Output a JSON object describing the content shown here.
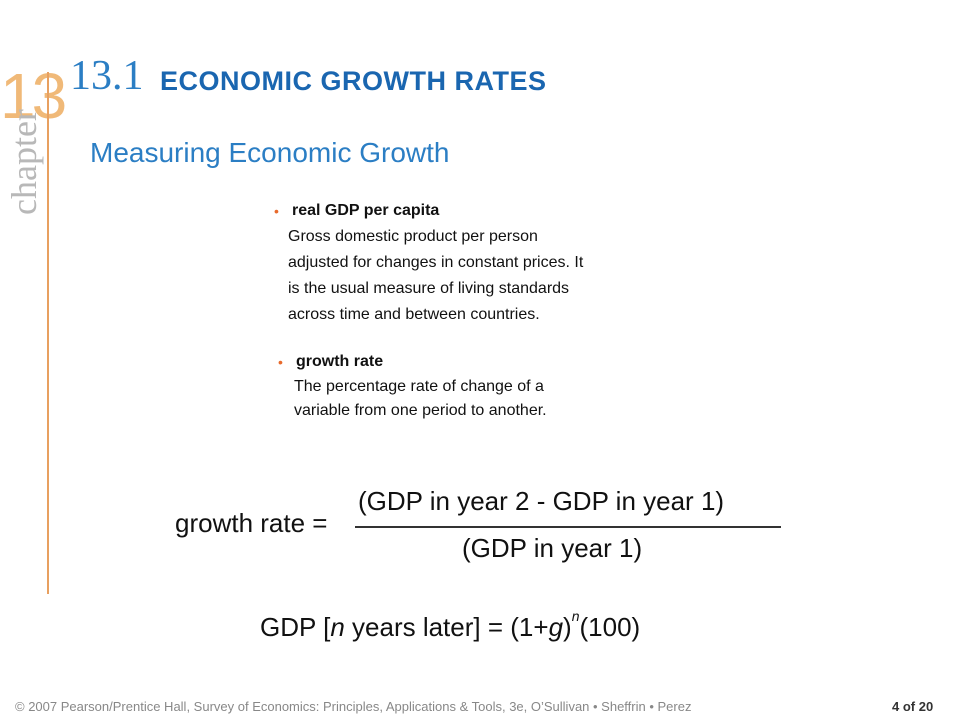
{
  "chapter": {
    "number": "13",
    "word": "chapter"
  },
  "section": {
    "number": "13.1",
    "title": "ECONOMIC GROWTH RATES"
  },
  "subtitle": "Measuring Economic Growth",
  "terms": [
    {
      "name": "real GDP per capita",
      "definition_lines": [
        "Gross domestic product per person",
        "adjusted for changes in constant prices. It",
        "is the usual measure of living standards",
        "across time and between countries."
      ]
    },
    {
      "name": "growth rate",
      "definition_lines": [
        "The percentage rate of change of a",
        "variable from one period to another."
      ]
    }
  ],
  "formula": {
    "label": "growth rate =",
    "numerator": "(GDP in year 2 - GDP in year 1)",
    "denominator": "(GDP in year 1)",
    "gdp_prefix": "GDP [",
    "gdp_var_n": "n",
    "gdp_mid": " years later] = (1+",
    "gdp_var_g": "g",
    "gdp_close": ")",
    "gdp_exponent": "n",
    "gdp_suffix": "(100)"
  },
  "footer": {
    "copyright": "© 2007 Pearson/Prentice Hall, Survey of Economics: Principles, Applications & Tools, 3e, O’Sullivan • Sheffrin • Perez",
    "page": "4 of 20"
  },
  "colors": {
    "accent_orange": "#e86a2c",
    "title_blue": "#1a66b0",
    "subtitle_blue": "#2b7ec4"
  }
}
